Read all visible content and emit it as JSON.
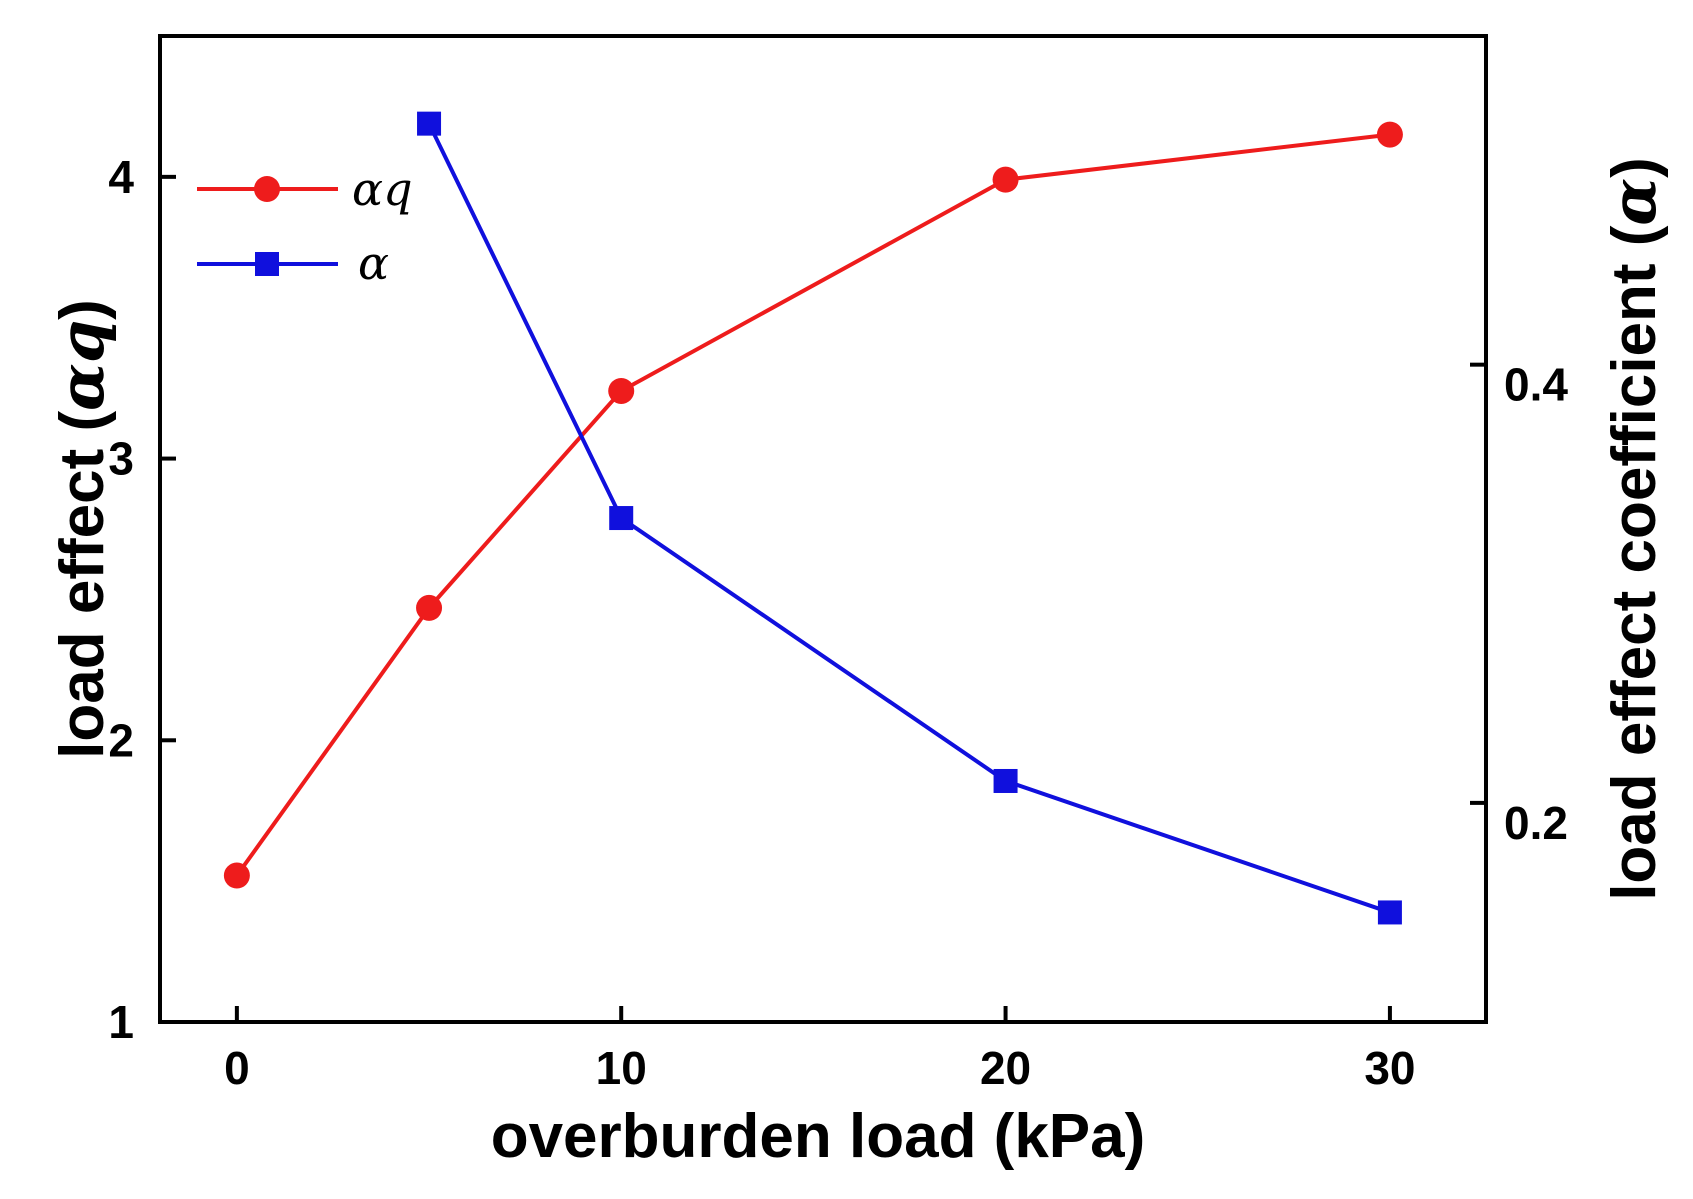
{
  "chart_data": {
    "type": "line",
    "x_axis": {
      "label": "overburden load (kPa)",
      "ticks": [
        0,
        10,
        20,
        30
      ],
      "range": [
        -2,
        32.5
      ]
    },
    "y_left": {
      "label_main": "load effect (",
      "label_symbol": "αq",
      "label_close": ")",
      "ticks": [
        1,
        2,
        3,
        4
      ],
      "range": [
        1,
        4.5
      ]
    },
    "y_right": {
      "label_main": "load effect coefficient (",
      "label_symbol": "α",
      "label_close": ")",
      "ticks": [
        "0.2",
        "0.4"
      ],
      "tick_values": [
        0.2,
        0.4
      ],
      "range": [
        0.1,
        0.55
      ]
    },
    "series": [
      {
        "name": "αq",
        "axis": "left",
        "marker": "circle",
        "color": "#ee1c1c",
        "x": [
          0,
          5,
          10,
          20,
          30
        ],
        "y": [
          1.52,
          2.47,
          3.24,
          3.99,
          4.15
        ]
      },
      {
        "name": "α",
        "axis": "right",
        "marker": "square",
        "color": "#1010dd",
        "x": [
          5,
          10,
          20,
          30
        ],
        "y": [
          0.51,
          0.33,
          0.21,
          0.15
        ]
      }
    ],
    "legend": {
      "position": "top-left",
      "entries": [
        "αq",
        "α"
      ]
    }
  }
}
